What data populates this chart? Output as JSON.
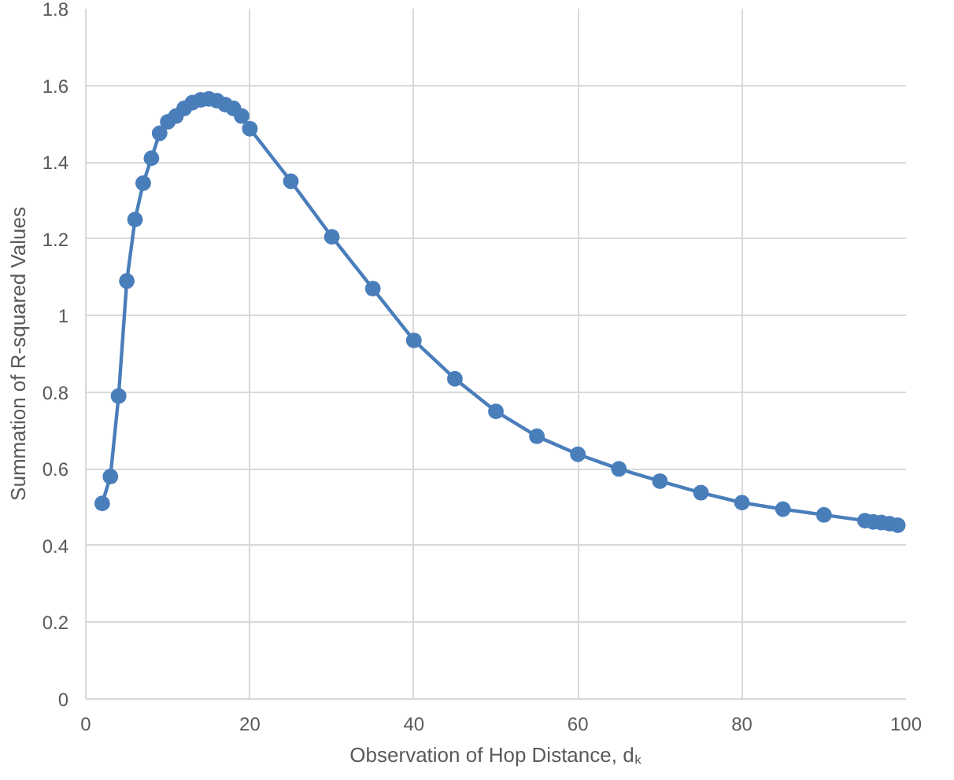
{
  "chart_data": {
    "type": "line",
    "xlabel": "Observation of Hop Distance, dₖ",
    "ylabel": "Summation of R-squared Values",
    "x": [
      2,
      3,
      4,
      5,
      6,
      7,
      8,
      9,
      10,
      11,
      12,
      13,
      14,
      15,
      16,
      17,
      18,
      19,
      20,
      25,
      30,
      35,
      40,
      45,
      50,
      55,
      60,
      65,
      70,
      75,
      80,
      85,
      90,
      95,
      96,
      97,
      98,
      99
    ],
    "series": [
      {
        "color": "#4a7ebb",
        "values": [
          0.51,
          0.58,
          0.79,
          1.09,
          1.25,
          1.345,
          1.41,
          1.475,
          1.505,
          1.52,
          1.54,
          1.555,
          1.562,
          1.565,
          1.56,
          1.55,
          1.54,
          1.52,
          1.487,
          1.35,
          1.205,
          1.07,
          0.935,
          0.835,
          0.75,
          0.685,
          0.638,
          0.6,
          0.568,
          0.538,
          0.512,
          0.495,
          0.48,
          0.465,
          0.462,
          0.46,
          0.457,
          0.453
        ]
      }
    ],
    "xlim": [
      0,
      100
    ],
    "xticks": [
      0,
      20,
      40,
      60,
      80,
      100
    ],
    "ylim": [
      0,
      1.8
    ],
    "yticks": [
      0,
      0.2,
      0.4,
      0.6,
      0.8,
      1,
      1.2,
      1.4,
      1.6,
      1.8
    ],
    "grid": true,
    "marker": "circle",
    "line_style": "solid"
  }
}
